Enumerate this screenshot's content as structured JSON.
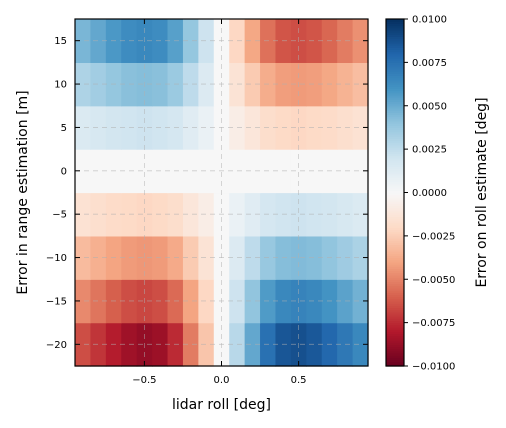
{
  "chart_data": {
    "type": "heatmap",
    "xlabel": "lidar roll [deg]",
    "ylabel": "Error in range estimation [m]",
    "colorbar_label": "Error on roll estimate [deg]",
    "colormap": "RdBu",
    "grid": "dashed",
    "xlim": [
      -0.95,
      0.95
    ],
    "ylim": [
      -22.5,
      17.5
    ],
    "x_ticks": [
      -0.5,
      0.0,
      0.5
    ],
    "x_tick_labels": [
      "−0.5",
      "0.0",
      "0.5"
    ],
    "y_ticks": [
      -20,
      -15,
      -10,
      -5,
      0,
      5,
      10,
      15
    ],
    "y_tick_labels": [
      "−20",
      "−15",
      "−10",
      "−5",
      "0",
      "5",
      "10",
      "15"
    ],
    "x_centers": [
      -0.9,
      -0.8,
      -0.7,
      -0.6,
      -0.5,
      -0.4,
      -0.3,
      -0.2,
      -0.1,
      0.0,
      0.1,
      0.2,
      0.3,
      0.4,
      0.5,
      0.6,
      0.7,
      0.8,
      0.9
    ],
    "y_centers": [
      -20,
      -15,
      -10,
      -5,
      0,
      5,
      10,
      15
    ],
    "value_range": [
      -0.01,
      0.01
    ],
    "colorbar_ticks": [
      -0.01,
      -0.0075,
      -0.005,
      -0.0025,
      0.0,
      0.0025,
      0.005,
      0.0075,
      0.01
    ],
    "colorbar_tick_labels": [
      "−0.0100",
      "−0.0075",
      "−0.0050",
      "−0.0025",
      "0.0000",
      "0.0025",
      "0.0050",
      "0.0075",
      "0.0100"
    ],
    "values": [
      [
        -0.0065,
        -0.0072,
        -0.0079,
        -0.0085,
        -0.0088,
        -0.0086,
        -0.0075,
        -0.0052,
        -0.0028,
        0.0,
        0.0028,
        0.0052,
        0.0075,
        0.0086,
        0.0088,
        0.0085,
        0.0079,
        0.0072,
        0.0065
      ],
      [
        -0.0048,
        -0.0054,
        -0.006,
        -0.0065,
        -0.0067,
        -0.0065,
        -0.0057,
        -0.004,
        -0.0021,
        0.0,
        0.0021,
        0.004,
        0.0057,
        0.0065,
        0.0067,
        0.0065,
        0.006,
        0.0054,
        0.0048
      ],
      [
        -0.0032,
        -0.0036,
        -0.004,
        -0.0043,
        -0.0044,
        -0.0043,
        -0.0038,
        -0.0026,
        -0.0014,
        0.0,
        0.0014,
        0.0026,
        0.0038,
        0.0043,
        0.0044,
        0.0043,
        0.004,
        0.0036,
        0.0032
      ],
      [
        -0.0015,
        -0.0017,
        -0.0019,
        -0.002,
        -0.0021,
        -0.002,
        -0.0018,
        -0.0012,
        -0.0007,
        0.0,
        0.0007,
        0.0012,
        0.0018,
        0.002,
        0.0021,
        0.002,
        0.0019,
        0.0017,
        0.0015
      ],
      [
        0.0,
        0.0,
        0.0,
        0.0,
        0.0,
        0.0,
        0.0,
        0.0,
        0.0,
        0.0,
        0.0,
        0.0,
        0.0,
        0.0,
        0.0,
        0.0,
        0.0,
        0.0,
        0.0
      ],
      [
        0.0015,
        0.0017,
        0.0019,
        0.002,
        0.0021,
        0.002,
        0.0018,
        0.0012,
        0.0007,
        0.0,
        -0.0007,
        -0.0012,
        -0.0018,
        -0.002,
        -0.0021,
        -0.002,
        -0.0019,
        -0.0017,
        -0.0015
      ],
      [
        0.0031,
        0.0035,
        0.0039,
        0.0042,
        0.0043,
        0.0042,
        0.0037,
        0.0026,
        0.0014,
        0.0,
        -0.0014,
        -0.0026,
        -0.0037,
        -0.0042,
        -0.0043,
        -0.0042,
        -0.0039,
        -0.0035,
        -0.0031
      ],
      [
        0.0046,
        0.0052,
        0.0058,
        0.0063,
        0.0065,
        0.0063,
        0.0055,
        0.0039,
        0.0021,
        0.0,
        -0.0021,
        -0.0039,
        -0.0055,
        -0.0063,
        -0.0065,
        -0.0063,
        -0.0058,
        -0.0052,
        -0.0046
      ]
    ]
  }
}
